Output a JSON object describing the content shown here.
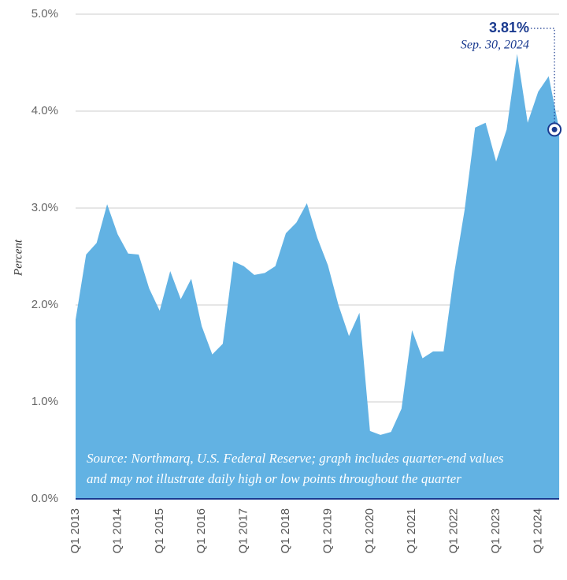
{
  "chart_data": {
    "type": "area",
    "y_label": "Percent",
    "categories": [
      "Q1 2013",
      null,
      null,
      null,
      "Q1 2014",
      null,
      null,
      null,
      "Q1 2015",
      null,
      null,
      null,
      "Q1 2016",
      null,
      null,
      null,
      "Q1 2017",
      null,
      null,
      null,
      "Q1 2018",
      null,
      null,
      null,
      "Q1 2019",
      null,
      null,
      null,
      "Q1 2020",
      null,
      null,
      null,
      "Q1 2021",
      null,
      null,
      null,
      "Q1 2022",
      null,
      null,
      null,
      "Q1 2023",
      null,
      null,
      null,
      "Q1 2024",
      null,
      null
    ],
    "values": [
      1.85,
      2.52,
      2.64,
      3.04,
      2.73,
      2.53,
      2.52,
      2.17,
      1.94,
      2.35,
      2.06,
      2.27,
      1.78,
      1.49,
      1.6,
      2.45,
      2.4,
      2.31,
      2.33,
      2.4,
      2.74,
      2.85,
      3.05,
      2.69,
      2.41,
      2.0,
      1.68,
      1.92,
      0.7,
      0.66,
      0.69,
      0.93,
      1.74,
      1.45,
      1.52,
      1.52,
      2.32,
      2.98,
      3.83,
      3.88,
      3.48,
      3.81,
      4.59,
      3.88,
      4.2,
      4.36,
      3.81
    ],
    "color": "#62b2e3",
    "ylim": [
      0,
      5
    ],
    "yticks": [
      {
        "value": 0,
        "label": "0.0%"
      },
      {
        "value": 1,
        "label": "1.0%"
      },
      {
        "value": 2,
        "label": "2.0%"
      },
      {
        "value": 3,
        "label": "3.0%"
      },
      {
        "value": 4,
        "label": "4.0%"
      },
      {
        "value": 5,
        "label": "5.0%"
      }
    ],
    "grid": true,
    "annotation": {
      "value_label": "3.81%",
      "date": "Sep. 30, 2024"
    },
    "source_note": [
      "Source: Northmarq, U.S. Federal Reserve; graph includes quarter-end values",
      "and may not illustrate daily high or low points throughout the quarter"
    ]
  }
}
